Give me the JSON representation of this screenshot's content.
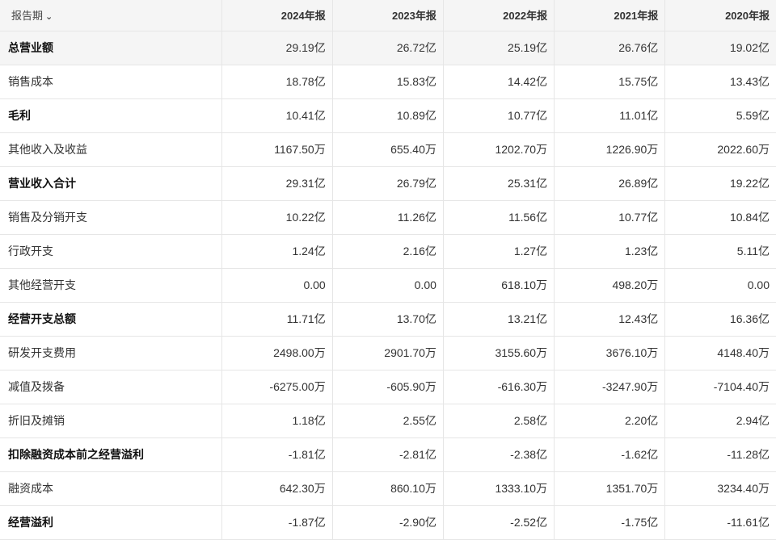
{
  "header": {
    "period_label": "报告期",
    "periods": [
      "2024年报",
      "2023年报",
      "2022年报",
      "2021年报",
      "2020年报"
    ]
  },
  "rows": [
    {
      "label": "总营业额",
      "bold": true,
      "values": [
        "29.19亿",
        "26.72亿",
        "25.19亿",
        "26.76亿",
        "19.02亿"
      ]
    },
    {
      "label": "销售成本",
      "bold": false,
      "values": [
        "18.78亿",
        "15.83亿",
        "14.42亿",
        "15.75亿",
        "13.43亿"
      ]
    },
    {
      "label": "毛利",
      "bold": true,
      "values": [
        "10.41亿",
        "10.89亿",
        "10.77亿",
        "11.01亿",
        "5.59亿"
      ]
    },
    {
      "label": "其他收入及收益",
      "bold": false,
      "values": [
        "1167.50万",
        "655.40万",
        "1202.70万",
        "1226.90万",
        "2022.60万"
      ]
    },
    {
      "label": "营业收入合计",
      "bold": true,
      "values": [
        "29.31亿",
        "26.79亿",
        "25.31亿",
        "26.89亿",
        "19.22亿"
      ]
    },
    {
      "label": "销售及分销开支",
      "bold": false,
      "values": [
        "10.22亿",
        "11.26亿",
        "11.56亿",
        "10.77亿",
        "10.84亿"
      ]
    },
    {
      "label": "行政开支",
      "bold": false,
      "values": [
        "1.24亿",
        "2.16亿",
        "1.27亿",
        "1.23亿",
        "5.11亿"
      ]
    },
    {
      "label": "其他经营开支",
      "bold": false,
      "values": [
        "0.00",
        "0.00",
        "618.10万",
        "498.20万",
        "0.00"
      ]
    },
    {
      "label": "经营开支总额",
      "bold": true,
      "values": [
        "11.71亿",
        "13.70亿",
        "13.21亿",
        "12.43亿",
        "16.36亿"
      ]
    },
    {
      "label": "研发开支费用",
      "bold": false,
      "values": [
        "2498.00万",
        "2901.70万",
        "3155.60万",
        "3676.10万",
        "4148.40万"
      ]
    },
    {
      "label": "减值及拨备",
      "bold": false,
      "values": [
        "-6275.00万",
        "-605.90万",
        "-616.30万",
        "-3247.90万",
        "-7104.40万"
      ]
    },
    {
      "label": "折旧及摊销",
      "bold": false,
      "values": [
        "1.18亿",
        "2.55亿",
        "2.58亿",
        "2.20亿",
        "2.94亿"
      ]
    },
    {
      "label": "扣除融资成本前之经营溢利",
      "bold": true,
      "values": [
        "-1.81亿",
        "-2.81亿",
        "-2.38亿",
        "-1.62亿",
        "-11.28亿"
      ]
    },
    {
      "label": "融资成本",
      "bold": false,
      "values": [
        "642.30万",
        "860.10万",
        "1333.10万",
        "1351.70万",
        "3234.40万"
      ]
    },
    {
      "label": "经营溢利",
      "bold": true,
      "values": [
        "-1.87亿",
        "-2.90亿",
        "-2.52亿",
        "-1.75亿",
        "-11.61亿"
      ]
    }
  ]
}
